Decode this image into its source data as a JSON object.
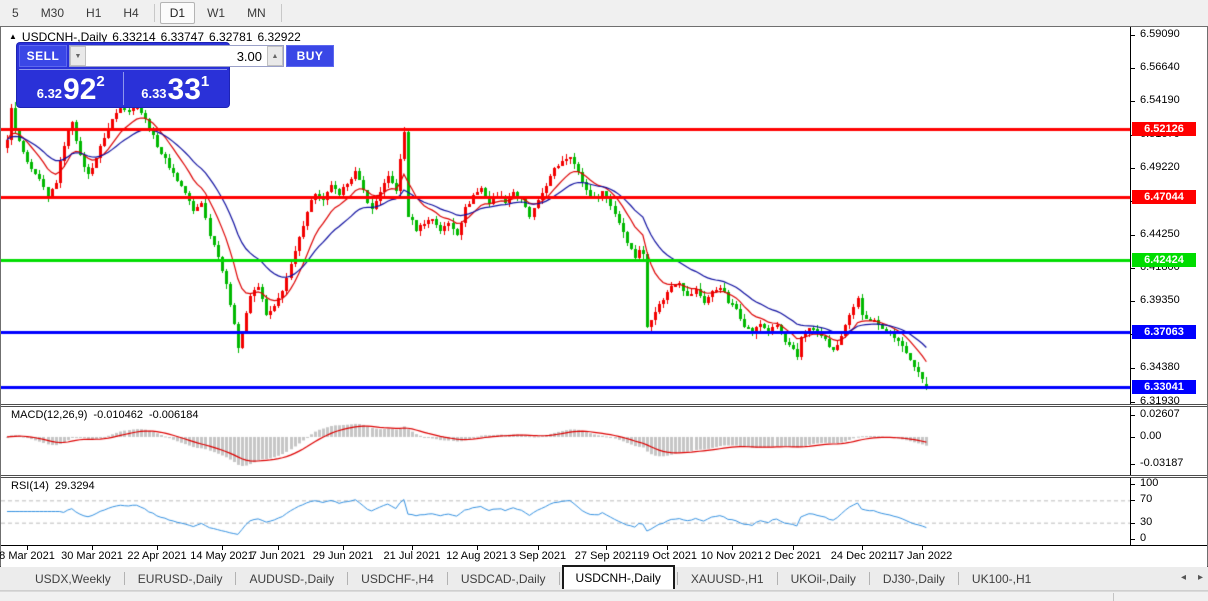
{
  "toolbar": {
    "items": [
      {
        "label": "5"
      },
      {
        "label": "M30"
      },
      {
        "label": "H1"
      },
      {
        "label": "H4"
      },
      {
        "sep": true
      },
      {
        "label": "D1",
        "active": true
      },
      {
        "label": "W1"
      },
      {
        "label": "MN"
      },
      {
        "sep": true
      }
    ]
  },
  "chart": {
    "title": {
      "collapse_icon": "▲",
      "symbol": "USDCNH-,Daily",
      "open": "6.33214",
      "high": "6.33747",
      "low": "6.32781",
      "close": "6.32922"
    },
    "trade_panel": {
      "sell_label": "SELL",
      "buy_label": "BUY",
      "volume": "3.00",
      "spinner_down": "▼",
      "spinner_up": "▲",
      "sell_price_small": "6.32",
      "sell_price_big": "92",
      "sell_price_sup": "2",
      "buy_price_small": "6.33",
      "buy_price_big": "33",
      "buy_price_sup": "1",
      "panel_color": "#2a31d8",
      "button_color": "#3a47e6"
    },
    "price_axis_ticks": [
      {
        "label": "6.59090",
        "price": 6.5909
      },
      {
        "label": "6.56640",
        "price": 6.5664
      },
      {
        "label": "6.54190",
        "price": 6.5419
      },
      {
        "label": "6.51670",
        "price": 6.5167
      },
      {
        "label": "6.49220",
        "price": 6.4922
      },
      {
        "label": "6.46770",
        "price": 6.4677
      },
      {
        "label": "6.44250",
        "price": 6.4425
      },
      {
        "label": "6.41800",
        "price": 6.418
      },
      {
        "label": "6.39350",
        "price": 6.3935
      },
      {
        "label": "6.36900",
        "price": 6.369
      },
      {
        "label": "6.34380",
        "price": 6.3438
      },
      {
        "label": "6.31930",
        "price": 6.3193
      }
    ],
    "hlines": [
      {
        "label": "6.52126",
        "price": 6.52126,
        "color": "#ff0000",
        "width": 3
      },
      {
        "label": "6.47044",
        "price": 6.47044,
        "color": "#ff0000",
        "width": 3
      },
      {
        "label": "6.42424",
        "price": 6.42424,
        "color": "#00dd00",
        "width": 3
      },
      {
        "label": "6.37063",
        "price": 6.37063,
        "color": "#0000ff",
        "width": 3
      },
      {
        "label": "6.33041",
        "price": 6.33041,
        "color": "#0000ff",
        "width": 3
      }
    ],
    "macd": {
      "name": "MACD(12,26,9)",
      "value_main": "-0.010462",
      "value_signal": "-0.006184",
      "axis_ticks": [
        {
          "label": "0.02607",
          "value": 0.02607
        },
        {
          "label": "0.00",
          "value": 0
        },
        {
          "label": "-0.03187",
          "value": -0.03187
        }
      ],
      "scale": {
        "max": 0.035,
        "min": -0.0445
      },
      "fast": 12,
      "slow": 26,
      "signal": 9,
      "histogram_color": "#c6c6c6",
      "signal_color": "#dd0000"
    },
    "rsi": {
      "name": "RSI(14)",
      "value": "29.3294",
      "period": 14,
      "axis_ticks": [
        {
          "label": "100",
          "value": 100
        },
        {
          "label": "70",
          "value": 70
        },
        {
          "label": "30",
          "value": 30
        },
        {
          "label": "0",
          "value": 0
        }
      ],
      "levels": [
        70,
        30
      ],
      "scale": {
        "max": 110,
        "min": -10
      },
      "line_color": "#3390e0",
      "level_color": "#bbbbbb"
    },
    "date_ticks": [
      {
        "label": "8 Mar 2021",
        "bar": 5
      },
      {
        "label": "30 Mar 2021",
        "bar": 21
      },
      {
        "label": "22 Apr 2021",
        "bar": 37
      },
      {
        "label": "14 May 2021",
        "bar": 53
      },
      {
        "label": "7 Jun 2021",
        "bar": 67
      },
      {
        "label": "29 Jun 2021",
        "bar": 83
      },
      {
        "label": "21 Jul 2021",
        "bar": 100
      },
      {
        "label": "12 Aug 2021",
        "bar": 116
      },
      {
        "label": "3 Sep 2021",
        "bar": 131
      },
      {
        "label": "27 Sep 2021",
        "bar": 148
      },
      {
        "label": "19 Oct 2021",
        "bar": 163
      },
      {
        "label": "10 Nov 2021",
        "bar": 179
      },
      {
        "label": "2 Dec 2021",
        "bar": 194
      },
      {
        "label": "24 Dec 2021",
        "bar": 211
      },
      {
        "label": "17 Jan 2022",
        "bar": 226
      }
    ],
    "chart_data": {
      "type": "candlestick",
      "symbol": "USDCNH-",
      "timeframe": "Daily",
      "bar_count": 228,
      "price_max": 6.5965,
      "price_min": 6.3175,
      "up_color": "#f20000",
      "down_color": "#00b800",
      "ma_fast_period": 10,
      "ma_fast_color": "#dd0000",
      "ma_slow_period": 22,
      "ma_slow_color": "#0f0fa0",
      "last_bar": {
        "open": 6.33214,
        "high": 6.33747,
        "low": 6.32781,
        "close": 6.32922
      },
      "close_anchors": [
        [
          0,
          6.512
        ],
        [
          1,
          6.538
        ],
        [
          2,
          6.52
        ],
        [
          4,
          6.503
        ],
        [
          6,
          6.49
        ],
        [
          8,
          6.483
        ],
        [
          10,
          6.47
        ],
        [
          12,
          6.482
        ],
        [
          14,
          6.51
        ],
        [
          16,
          6.527
        ],
        [
          18,
          6.5
        ],
        [
          20,
          6.487
        ],
        [
          22,
          6.5
        ],
        [
          24,
          6.515
        ],
        [
          26,
          6.528
        ],
        [
          28,
          6.538
        ],
        [
          30,
          6.535
        ],
        [
          32,
          6.539
        ],
        [
          34,
          6.528
        ],
        [
          36,
          6.515
        ],
        [
          38,
          6.503
        ],
        [
          40,
          6.493
        ],
        [
          42,
          6.483
        ],
        [
          44,
          6.474
        ],
        [
          46,
          6.46
        ],
        [
          48,
          6.467
        ],
        [
          50,
          6.443
        ],
        [
          52,
          6.428
        ],
        [
          54,
          6.405
        ],
        [
          56,
          6.378
        ],
        [
          57,
          6.359
        ],
        [
          58,
          6.371
        ],
        [
          60,
          6.397
        ],
        [
          62,
          6.405
        ],
        [
          64,
          6.383
        ],
        [
          66,
          6.389
        ],
        [
          68,
          6.402
        ],
        [
          70,
          6.42
        ],
        [
          72,
          6.44
        ],
        [
          74,
          6.461
        ],
        [
          76,
          6.474
        ],
        [
          78,
          6.467
        ],
        [
          80,
          6.48
        ],
        [
          82,
          6.471
        ],
        [
          84,
          6.482
        ],
        [
          86,
          6.489
        ],
        [
          88,
          6.475
        ],
        [
          90,
          6.461
        ],
        [
          92,
          6.475
        ],
        [
          94,
          6.485
        ],
        [
          96,
          6.476
        ],
        [
          98,
          6.519
        ],
        [
          99,
          6.457
        ],
        [
          101,
          6.447
        ],
        [
          103,
          6.452
        ],
        [
          105,
          6.455
        ],
        [
          107,
          6.446
        ],
        [
          109,
          6.451
        ],
        [
          111,
          6.444
        ],
        [
          113,
          6.462
        ],
        [
          115,
          6.472
        ],
        [
          117,
          6.477
        ],
        [
          119,
          6.466
        ],
        [
          121,
          6.472
        ],
        [
          123,
          6.468
        ],
        [
          125,
          6.475
        ],
        [
          127,
          6.468
        ],
        [
          129,
          6.456
        ],
        [
          131,
          6.467
        ],
        [
          133,
          6.48
        ],
        [
          135,
          6.491
        ],
        [
          137,
          6.498
        ],
        [
          139,
          6.502
        ],
        [
          141,
          6.488
        ],
        [
          143,
          6.476
        ],
        [
          145,
          6.47
        ],
        [
          147,
          6.475
        ],
        [
          149,
          6.465
        ],
        [
          151,
          6.452
        ],
        [
          153,
          6.438
        ],
        [
          155,
          6.426
        ],
        [
          156,
          6.432
        ],
        [
          157,
          6.428
        ],
        [
          158,
          6.375
        ],
        [
          160,
          6.387
        ],
        [
          162,
          6.395
        ],
        [
          164,
          6.405
        ],
        [
          166,
          6.408
        ],
        [
          168,
          6.397
        ],
        [
          170,
          6.402
        ],
        [
          172,
          6.393
        ],
        [
          174,
          6.4
        ],
        [
          176,
          6.405
        ],
        [
          178,
          6.393
        ],
        [
          180,
          6.388
        ],
        [
          182,
          6.376
        ],
        [
          184,
          6.37
        ],
        [
          186,
          6.377
        ],
        [
          188,
          6.371
        ],
        [
          190,
          6.376
        ],
        [
          192,
          6.363
        ],
        [
          194,
          6.357
        ],
        [
          195,
          6.351
        ],
        [
          196,
          6.367
        ],
        [
          198,
          6.375
        ],
        [
          200,
          6.37
        ],
        [
          202,
          6.365
        ],
        [
          204,
          6.356
        ],
        [
          206,
          6.368
        ],
        [
          208,
          6.382
        ],
        [
          210,
          6.395
        ],
        [
          211,
          6.384
        ],
        [
          213,
          6.38
        ],
        [
          215,
          6.377
        ],
        [
          217,
          6.371
        ],
        [
          219,
          6.367
        ],
        [
          221,
          6.359
        ],
        [
          223,
          6.351
        ],
        [
          225,
          6.341
        ],
        [
          226,
          6.335
        ],
        [
          227,
          6.3292
        ]
      ]
    }
  },
  "tabs": {
    "items": [
      {
        "label": "USDX,Weekly"
      },
      {
        "label": "EURUSD-,Daily"
      },
      {
        "label": "AUDUSD-,Daily"
      },
      {
        "label": "USDCHF-,H4"
      },
      {
        "label": "USDCAD-,Daily"
      },
      {
        "label": "USDCNH-,Daily",
        "active": true
      },
      {
        "label": "XAUUSD-,H1"
      },
      {
        "label": "UKOil-,Daily"
      },
      {
        "label": "DJ30-,Daily"
      },
      {
        "label": "UK100-,H1"
      }
    ],
    "scroll_left_icon": "◂",
    "scroll_right_icon": "▸"
  }
}
